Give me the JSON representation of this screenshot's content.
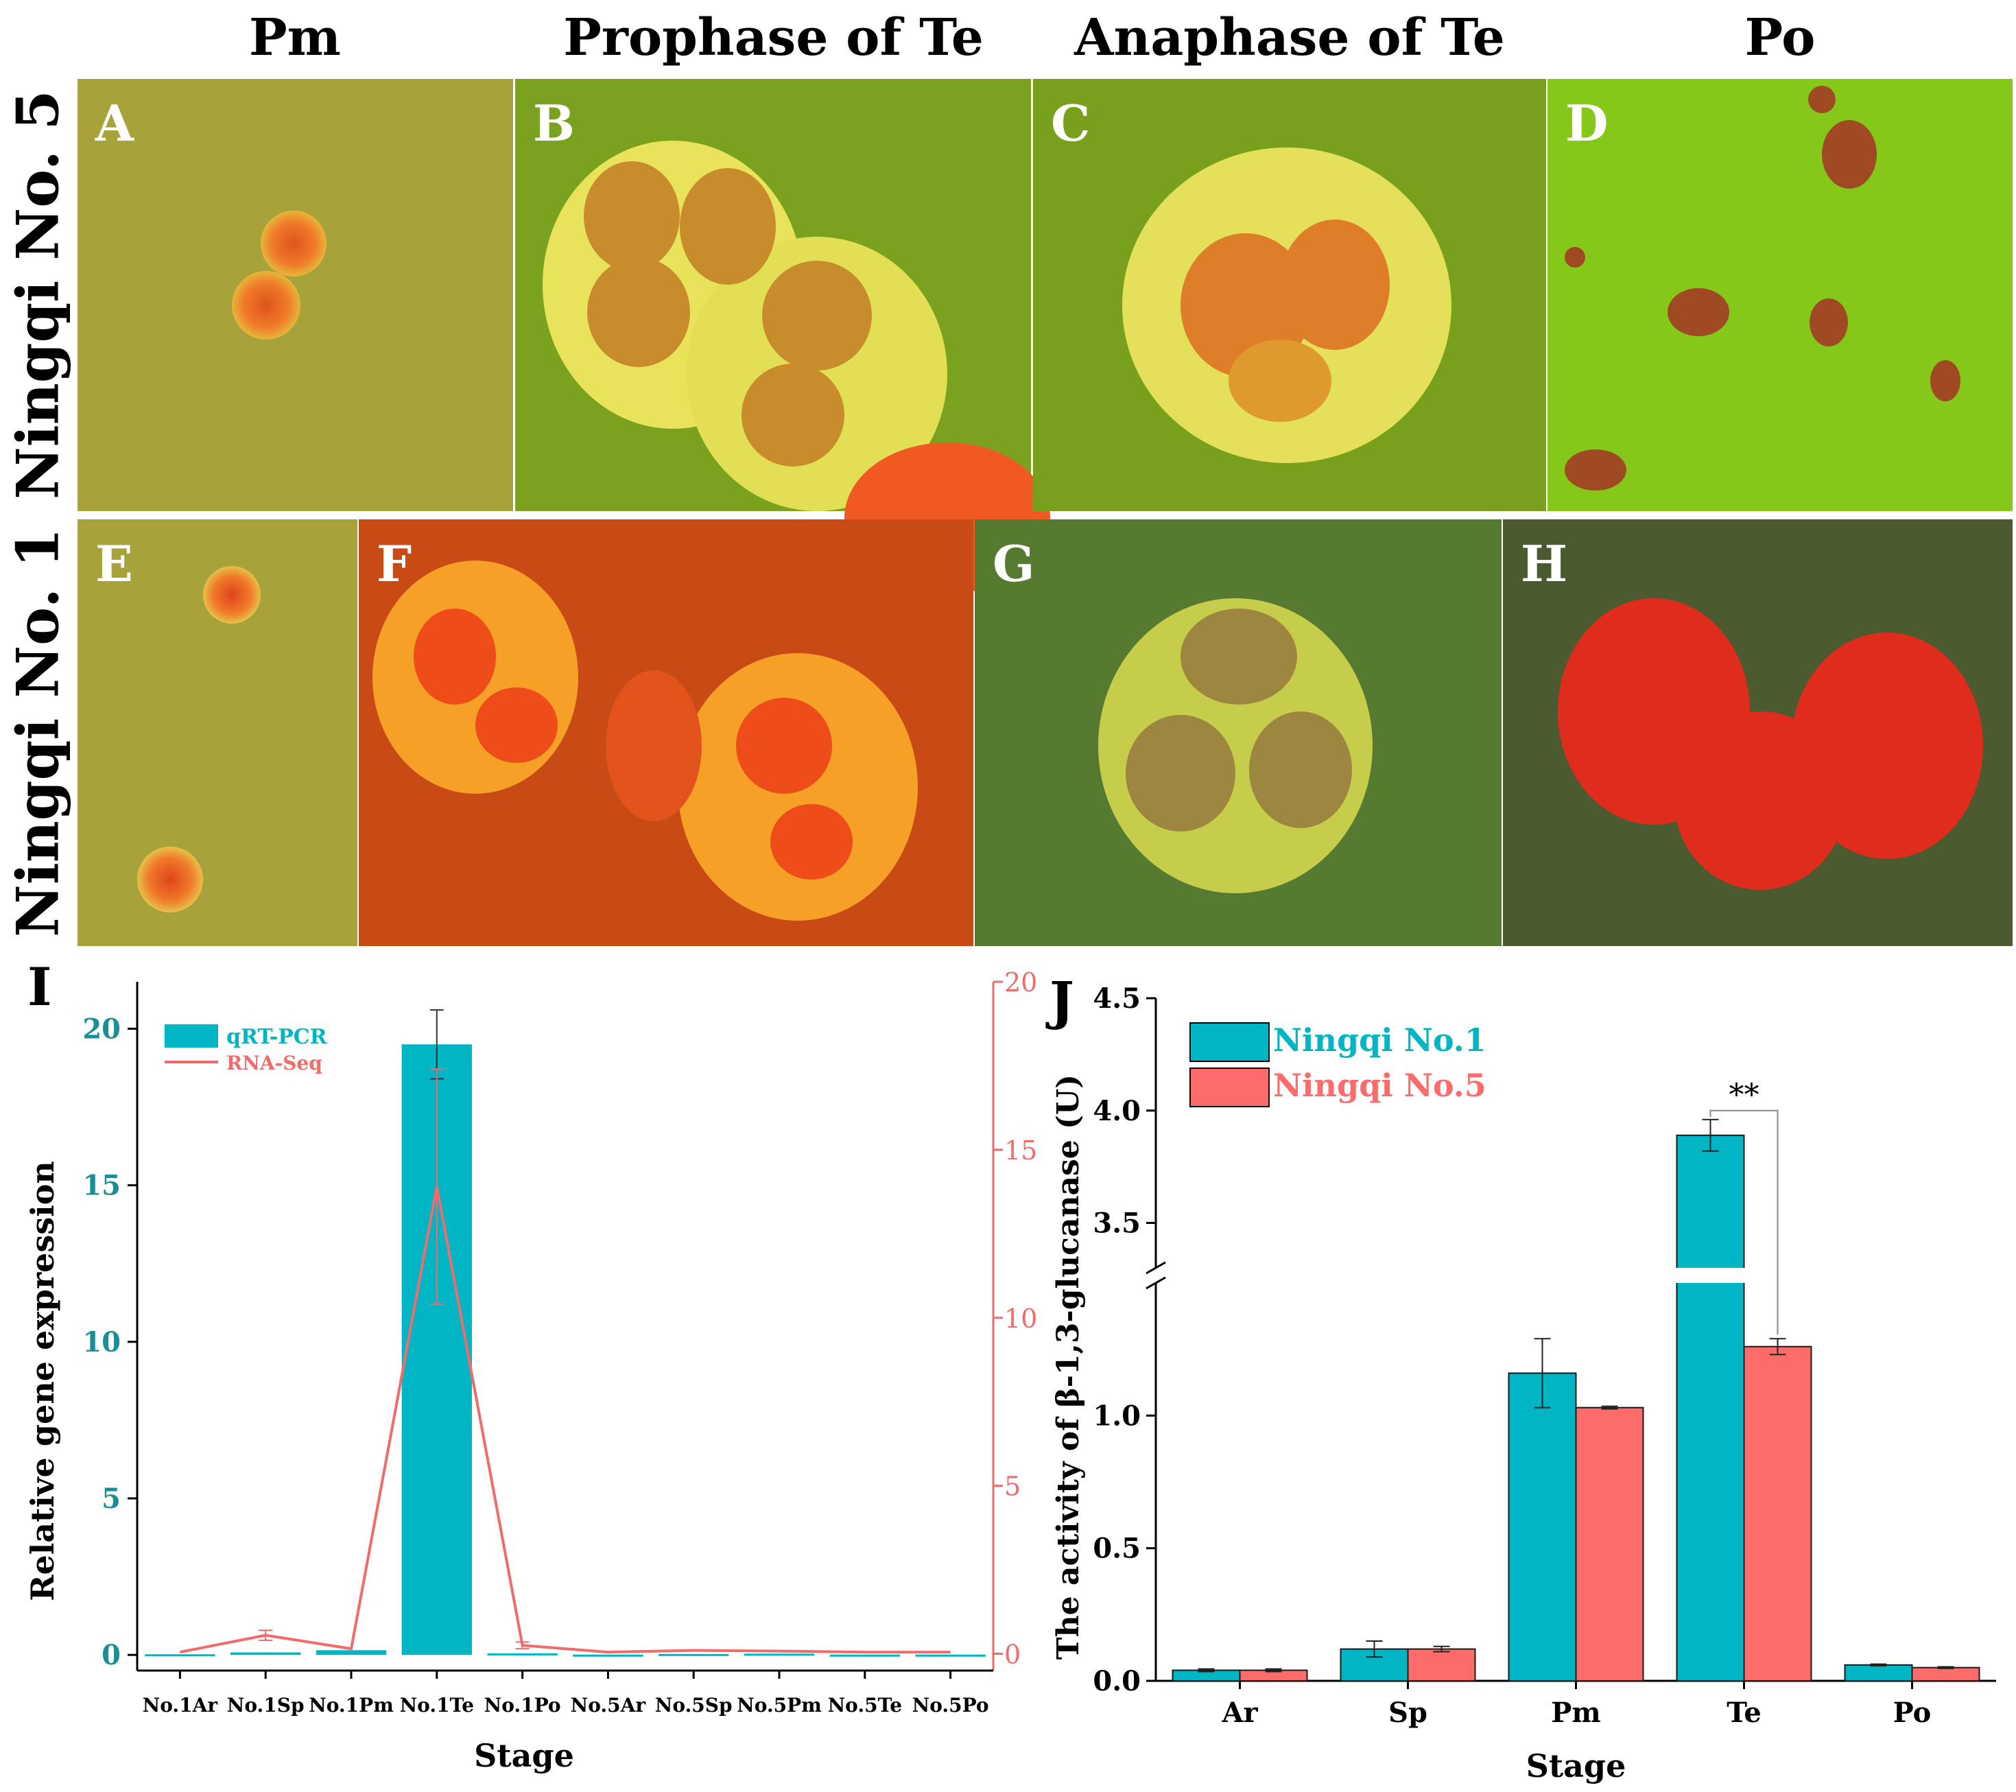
{
  "columns": [
    "Pm",
    "Prophase of Te",
    "Anaphase of Te",
    "Po"
  ],
  "rows": [
    "Ningqi No. 5",
    "Ningqi No. 1"
  ],
  "panel_labels": [
    "A",
    "B",
    "C",
    "D",
    "E",
    "F",
    "G",
    "H",
    "I",
    "J"
  ],
  "colors": {
    "teal": "#00b5c4",
    "salmon": "#fe6b6b",
    "axis_red": "#f26b6b"
  },
  "chart_data": [
    {
      "type": "bar",
      "panel": "I",
      "categories": [
        "No.1Ar",
        "No.1Sp",
        "No.1Pm",
        "No.1Te",
        "No.1Po",
        "No.5Ar",
        "No.5Sp",
        "No.5Pm",
        "No.5Te",
        "No.5Po"
      ],
      "series": [
        {
          "name": "qRT-PCR",
          "axis": "left",
          "kind": "bar",
          "values": [
            0.02,
            0.08,
            0.15,
            19.5,
            0.05,
            0.01,
            0.03,
            0.04,
            0.01,
            0.01
          ],
          "errors": [
            0.01,
            0.05,
            0.05,
            1.1,
            0.02,
            0.01,
            0.01,
            0.01,
            0.01,
            0.01
          ]
        },
        {
          "name": "RNA-Seq",
          "axis": "right",
          "kind": "line",
          "values": [
            0.05,
            0.55,
            0.15,
            13.9,
            0.25,
            0.05,
            0.1,
            0.08,
            0.05,
            0.05
          ],
          "errors": [
            0.02,
            0.15,
            0.05,
            3.5,
            0.1,
            0.02,
            0.05,
            0.05,
            0.02,
            0.02
          ]
        }
      ],
      "xlabel": "Stage",
      "ylabel": "Relative gene expression",
      "ylim": [
        -0.5,
        21.5
      ],
      "y2lim": [
        -0.5,
        20
      ],
      "yticks": [
        "0",
        "5",
        "10",
        "15",
        "20"
      ],
      "y2ticks": [
        "0",
        "5",
        "10",
        "15",
        "20"
      ],
      "legend": "top-left"
    },
    {
      "type": "bar",
      "panel": "J",
      "categories": [
        "Ar",
        "Sp",
        "Pm",
        "Te",
        "Po"
      ],
      "series": [
        {
          "name": "Ningqi No.1",
          "values": [
            0.04,
            0.12,
            1.16,
            3.89,
            0.06
          ],
          "errors": [
            0.005,
            0.03,
            0.13,
            0.07,
            0.003
          ]
        },
        {
          "name": "Ningqi No.5",
          "values": [
            0.04,
            0.12,
            1.03,
            1.26,
            0.05
          ],
          "errors": [
            0.005,
            0.01,
            0.005,
            0.03,
            0.003
          ]
        }
      ],
      "xlabel": "Stage",
      "ylabel": "The activity of β-1,3-glucanase (U)",
      "yticks": [
        "0.0",
        "0.5",
        "1.0",
        "3.5",
        "4.0",
        "4.5"
      ],
      "axis_break": [
        1.5,
        3.3
      ],
      "annotation": "**",
      "legend": "top-left"
    }
  ]
}
